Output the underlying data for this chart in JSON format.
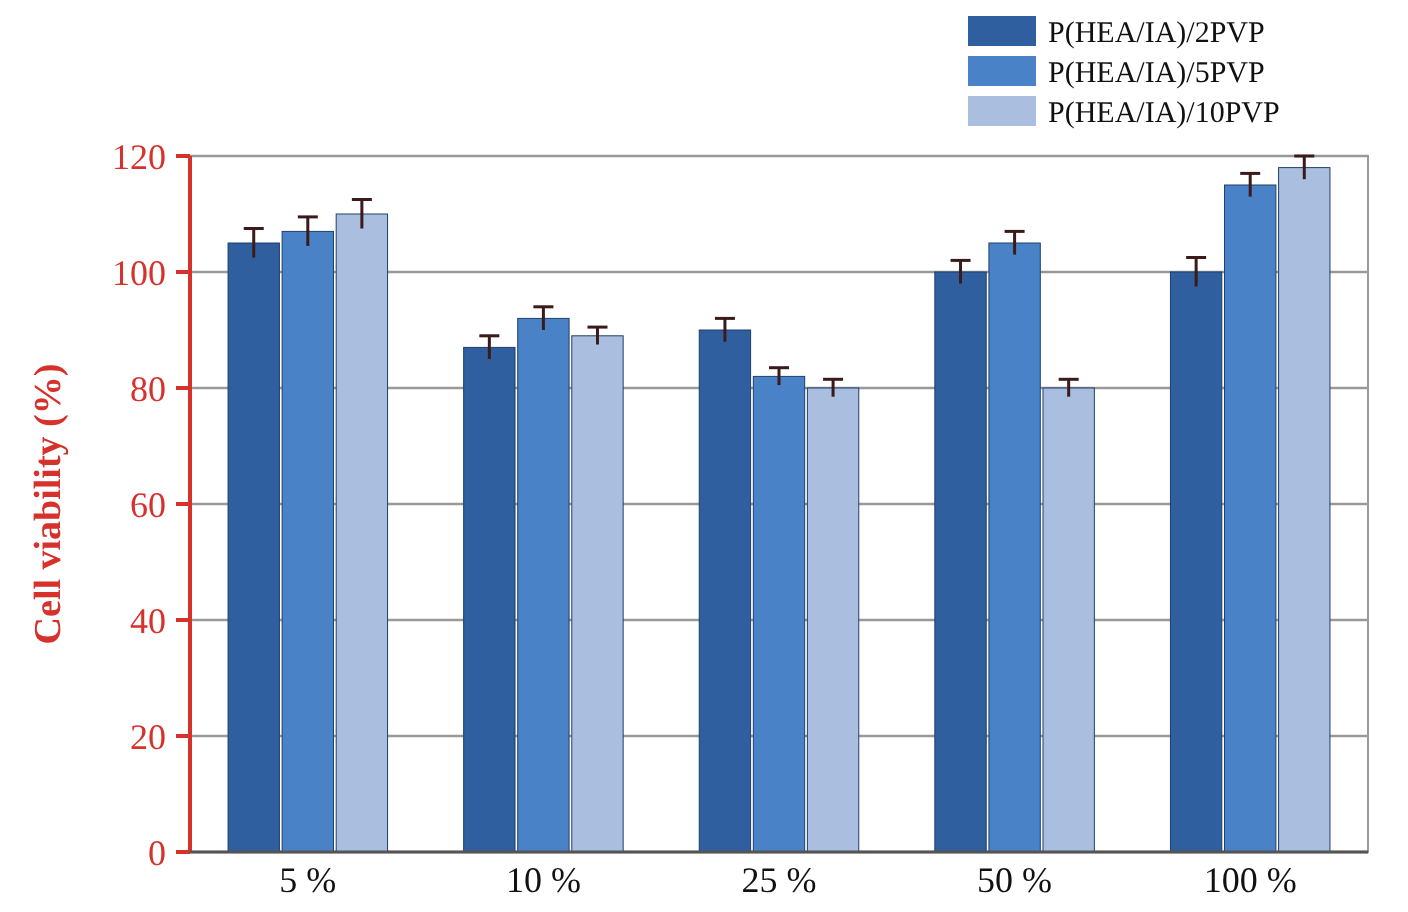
{
  "chart_data": {
    "type": "bar",
    "ylabel": "Cell viability (%)",
    "categories": [
      "5 %",
      "10 %",
      "25 %",
      "50 %",
      "100 %"
    ],
    "series": [
      {
        "name": "P(HEA/IA)/2PVP",
        "color": "#2f5f9e",
        "values": [
          105,
          87,
          90,
          100,
          100
        ],
        "errors": [
          2.5,
          2,
          2,
          2,
          2.5
        ]
      },
      {
        "name": "P(HEA/IA)/5PVP",
        "color": "#4a82c8",
        "values": [
          107,
          92,
          82,
          105,
          115
        ],
        "errors": [
          2.5,
          2,
          1.5,
          2,
          2
        ]
      },
      {
        "name": "P(HEA/IA)/10PVP",
        "color": "#aabfe0",
        "values": [
          110,
          89,
          80,
          80,
          118
        ],
        "errors": [
          2.5,
          1.5,
          1.5,
          1.5,
          2
        ]
      }
    ],
    "ylim": [
      0,
      120
    ],
    "yticks": [
      0,
      20,
      40,
      60,
      80,
      100,
      120
    ],
    "grid": "y",
    "legend": "top right"
  }
}
